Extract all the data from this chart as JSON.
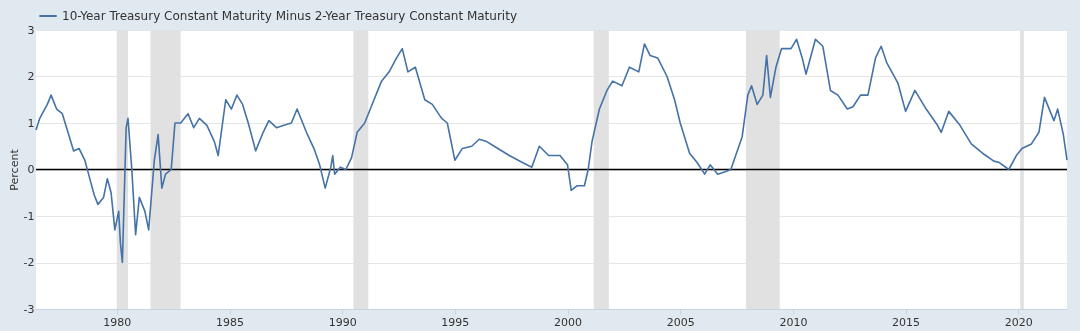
{
  "chart_data": {
    "type": "line",
    "ylabel": "Percent",
    "legend": "top left",
    "grid": "y",
    "line_style": "solid",
    "marker": "none",
    "xlim": [
      "1976-06",
      "2022-03"
    ],
    "xticks": [
      {
        "value": "1980",
        "label": "1980"
      },
      {
        "value": "1985",
        "label": "1985"
      },
      {
        "value": "1990",
        "label": "1990"
      },
      {
        "value": "1995",
        "label": "1995"
      },
      {
        "value": "2000",
        "label": "2000"
      },
      {
        "value": "2005",
        "label": "2005"
      },
      {
        "value": "2010",
        "label": "2010"
      },
      {
        "value": "2015",
        "label": "2015"
      },
      {
        "value": "2020",
        "label": "2020"
      }
    ],
    "ylim": [
      -3,
      3
    ],
    "yticks": [
      -3,
      -2,
      -1,
      0,
      1,
      2,
      3
    ],
    "ref_lines": [
      {
        "axis": "y",
        "value": 0,
        "label": null,
        "color": "#000000"
      }
    ],
    "bands": [
      {
        "axis": "x",
        "from": "1980-01",
        "to": "1980-07",
        "label": null,
        "color": "#e1e1e1"
      },
      {
        "axis": "x",
        "from": "1981-07",
        "to": "1982-11",
        "label": null,
        "color": "#e1e1e1"
      },
      {
        "axis": "x",
        "from": "1990-07",
        "to": "1991-03",
        "label": null,
        "color": "#e1e1e1"
      },
      {
        "axis": "x",
        "from": "2001-03",
        "to": "2001-11",
        "label": null,
        "color": "#e1e1e1"
      },
      {
        "axis": "x",
        "from": "2007-12",
        "to": "2009-06",
        "label": null,
        "color": "#e1e1e1"
      },
      {
        "axis": "x",
        "from": "2020-02",
        "to": "2020-04",
        "label": null,
        "color": "#e1e1e1"
      }
    ],
    "x": [
      "1976-06",
      "1976-08",
      "1976-12",
      "1977-02",
      "1977-05",
      "1977-08",
      "1977-11",
      "1978-02",
      "1978-05",
      "1978-08",
      "1978-10",
      "1979-01",
      "1979-03",
      "1979-06",
      "1979-08",
      "1979-10",
      "1979-12",
      "1980-02",
      "1980-03",
      "1980-04",
      "1980-06",
      "1980-07",
      "1980-09",
      "1980-11",
      "1981-01",
      "1981-04",
      "1981-06",
      "1981-09",
      "1981-11",
      "1982-01",
      "1982-03",
      "1982-06",
      "1982-08",
      "1982-11",
      "1983-03",
      "1983-06",
      "1983-09",
      "1984-01",
      "1984-05",
      "1984-07",
      "1984-11",
      "1985-02",
      "1985-05",
      "1985-08",
      "1985-11",
      "1986-03",
      "1986-07",
      "1986-10",
      "1987-02",
      "1987-06",
      "1987-10",
      "1988-01",
      "1988-06",
      "1988-10",
      "1989-01",
      "1989-04",
      "1989-07",
      "1989-08",
      "1989-09",
      "1989-12",
      "1990-03",
      "1990-06",
      "1990-09",
      "1991-01",
      "1991-06",
      "1991-10",
      "1992-02",
      "1992-06",
      "1992-09",
      "1992-12",
      "1993-04",
      "1993-09",
      "1994-01",
      "1994-06",
      "1994-09",
      "1995-01",
      "1995-05",
      "1995-10",
      "1996-02",
      "1996-06",
      "1996-10",
      "1997-06",
      "1998-01",
      "1998-06",
      "1998-10",
      "1999-03",
      "1999-09",
      "2000-01",
      "2000-03",
      "2000-06",
      "2000-10",
      "2000-12",
      "2001-02",
      "2001-06",
      "2001-10",
      "2002-01",
      "2002-06",
      "2002-10",
      "2003-03",
      "2003-06",
      "2003-09",
      "2004-01",
      "2004-06",
      "2004-10",
      "2005-01",
      "2005-06",
      "2005-10",
      "2006-02",
      "2006-05",
      "2006-09",
      "2007-01",
      "2007-04",
      "2007-07",
      "2007-10",
      "2008-01",
      "2008-03",
      "2008-06",
      "2008-09",
      "2008-11",
      "2009-01",
      "2009-04",
      "2009-07",
      "2009-12",
      "2010-03",
      "2010-06",
      "2010-08",
      "2011-01",
      "2011-05",
      "2011-09",
      "2012-01",
      "2012-06",
      "2012-09",
      "2013-01",
      "2013-05",
      "2013-09",
      "2013-12",
      "2014-03",
      "2014-09",
      "2015-01",
      "2015-06",
      "2015-12",
      "2016-06",
      "2016-08",
      "2016-12",
      "2017-06",
      "2017-12",
      "2018-06",
      "2018-12",
      "2019-03",
      "2019-08",
      "2019-12",
      "2020-03",
      "2020-08",
      "2020-12",
      "2021-03",
      "2021-06",
      "2021-08",
      "2021-10",
      "2022-01",
      "2022-03"
    ],
    "series": [
      {
        "name": "10-Year Treasury Constant Maturity Minus 2-Year Treasury Constant Maturity",
        "color": "#4572a7",
        "values": [
          0.85,
          1.1,
          1.4,
          1.6,
          1.3,
          1.2,
          0.8,
          0.4,
          0.45,
          0.2,
          -0.1,
          -0.55,
          -0.75,
          -0.6,
          -0.2,
          -0.5,
          -1.3,
          -0.9,
          -1.6,
          -2.0,
          0.9,
          1.1,
          0.0,
          -1.4,
          -0.6,
          -0.9,
          -1.3,
          0.2,
          0.75,
          -0.4,
          -0.1,
          0.0,
          1.0,
          1.0,
          1.2,
          0.9,
          1.1,
          0.95,
          0.6,
          0.3,
          1.5,
          1.3,
          1.6,
          1.4,
          1.0,
          0.4,
          0.8,
          1.05,
          0.9,
          0.95,
          1.0,
          1.3,
          0.8,
          0.45,
          0.1,
          -0.4,
          0.05,
          0.3,
          -0.1,
          0.05,
          0.0,
          0.25,
          0.8,
          1.0,
          1.5,
          1.9,
          2.1,
          2.4,
          2.6,
          2.1,
          2.2,
          1.5,
          1.4,
          1.1,
          1.0,
          0.2,
          0.45,
          0.5,
          0.65,
          0.6,
          0.5,
          0.3,
          0.15,
          0.05,
          0.5,
          0.3,
          0.3,
          0.1,
          -0.45,
          -0.35,
          -0.35,
          0.0,
          0.6,
          1.3,
          1.7,
          1.9,
          1.8,
          2.2,
          2.1,
          2.7,
          2.45,
          2.4,
          2.0,
          1.5,
          1.0,
          0.35,
          0.15,
          -0.1,
          0.1,
          -0.1,
          -0.05,
          0.0,
          0.35,
          0.7,
          1.6,
          1.8,
          1.4,
          1.6,
          2.45,
          1.55,
          2.2,
          2.6,
          2.6,
          2.8,
          2.4,
          2.05,
          2.8,
          2.65,
          1.7,
          1.6,
          1.3,
          1.35,
          1.6,
          1.6,
          2.4,
          2.65,
          2.3,
          1.85,
          1.25,
          1.7,
          1.3,
          0.95,
          0.8,
          1.25,
          0.95,
          0.55,
          0.35,
          0.18,
          0.15,
          0.0,
          0.3,
          0.45,
          0.55,
          0.8,
          1.55,
          1.25,
          1.05,
          1.3,
          0.75,
          0.2
        ]
      }
    ]
  }
}
